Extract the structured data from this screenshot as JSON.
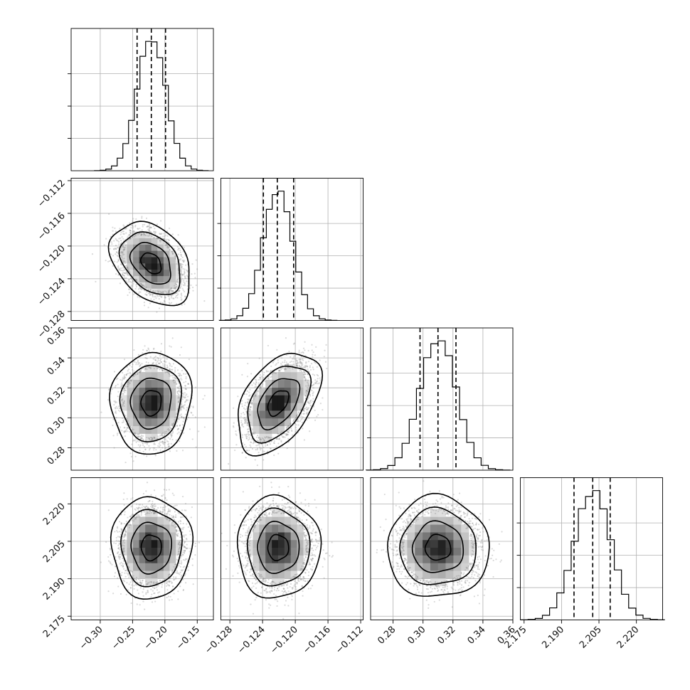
{
  "chart_data": {
    "type": "corner",
    "parameters": [
      {
        "id": "p0",
        "range": [
          -0.345,
          -0.125
        ],
        "ticks": [
          -0.3,
          -0.25,
          -0.2,
          -0.15
        ],
        "tick_labels": [
          "−0.30",
          "−0.25",
          "−0.20",
          "−0.15"
        ],
        "quantiles": [
          -0.243,
          -0.221,
          -0.199
        ],
        "mean": -0.221,
        "sd": 0.022
      },
      {
        "id": "p1",
        "range": [
          -0.1291,
          -0.1117
        ],
        "ticks": [
          -0.128,
          -0.124,
          -0.12,
          -0.116,
          -0.112
        ],
        "tick_labels": [
          "−0.128",
          "−0.124",
          "−0.120",
          "−0.116",
          "−0.112"
        ],
        "quantiles": [
          -0.1239,
          -0.1222,
          -0.1202
        ],
        "mean": -0.1221,
        "sd": 0.0018
      },
      {
        "id": "p2",
        "range": [
          0.265,
          0.36
        ],
        "ticks": [
          0.28,
          0.3,
          0.32,
          0.34,
          0.36
        ],
        "tick_labels": [
          "0.28",
          "0.30",
          "0.32",
          "0.34",
          "0.36"
        ],
        "quantiles": [
          0.298,
          0.31,
          0.322
        ],
        "mean": 0.31,
        "sd": 0.012
      },
      {
        "id": "p3",
        "range": [
          2.1735,
          2.2305
        ],
        "ticks": [
          2.175,
          2.19,
          2.205,
          2.22
        ],
        "tick_labels": [
          "2.175",
          "2.190",
          "2.205",
          "2.220"
        ],
        "quantiles": [
          2.195,
          2.2025,
          2.2095
        ],
        "mean": 2.2025,
        "sd": 0.0072
      }
    ],
    "correlations": {
      "1,0": -0.35,
      "2,0": 0.05,
      "2,1": 0.45,
      "3,0": 0.0,
      "3,1": 0.0,
      "3,2": 0.0
    },
    "contour_levels_sigma": [
      0.5,
      1.0,
      1.5,
      2.0
    ],
    "grid": true,
    "title": "",
    "xlabel": "",
    "ylabel": ""
  }
}
